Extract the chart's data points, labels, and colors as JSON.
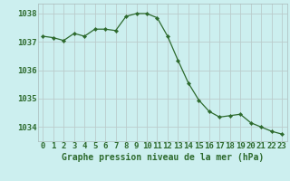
{
  "hours": [
    0,
    1,
    2,
    3,
    4,
    5,
    6,
    7,
    8,
    9,
    10,
    11,
    12,
    13,
    14,
    15,
    16,
    17,
    18,
    19,
    20,
    21,
    22,
    23
  ],
  "pressure": [
    1037.2,
    1037.15,
    1037.05,
    1037.3,
    1037.2,
    1037.45,
    1037.45,
    1037.4,
    1037.9,
    1038.0,
    1038.0,
    1037.85,
    1037.2,
    1036.35,
    1035.55,
    1034.95,
    1034.55,
    1034.35,
    1034.4,
    1034.45,
    1034.15,
    1034.0,
    1033.85,
    1033.75
  ],
  "line_color": "#2d6a2d",
  "marker_color": "#2d6a2d",
  "bg_color": "#ccefef",
  "grid_color": "#bbcccc",
  "axis_label_color": "#2d6a2d",
  "title": "Graphe pression niveau de la mer (hPa)",
  "ylim": [
    1033.5,
    1038.35
  ],
  "yticks": [
    1034,
    1035,
    1036,
    1037,
    1038
  ],
  "tick_fontsize": 6.5,
  "title_fontsize": 7.0
}
